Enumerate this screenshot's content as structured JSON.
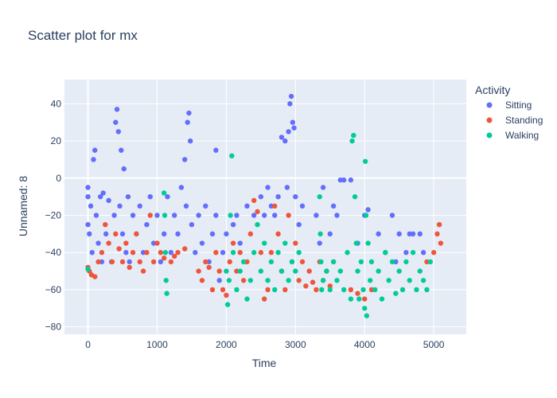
{
  "chart_data": {
    "type": "scatter",
    "title": "Scatter plot for mx",
    "xlabel": "Time",
    "ylabel": "Unnamed: 8",
    "xlim": [
      -340,
      5470
    ],
    "ylim": [
      -84,
      53
    ],
    "x_ticks": [
      0,
      1000,
      2000,
      3000,
      4000,
      5000
    ],
    "y_ticks": [
      -80,
      -60,
      -40,
      -20,
      0,
      20,
      40
    ],
    "grid": true,
    "legend": {
      "title": "Activity",
      "placement": "right"
    },
    "series": [
      {
        "name": "Sitting",
        "color": "#636efa",
        "points": [
          [
            0,
            -25
          ],
          [
            0,
            -10
          ],
          [
            0,
            -5
          ],
          [
            20,
            -30
          ],
          [
            40,
            -15
          ],
          [
            60,
            -40
          ],
          [
            80,
            10
          ],
          [
            100,
            15
          ],
          [
            120,
            -20
          ],
          [
            150,
            -35
          ],
          [
            180,
            -10
          ],
          [
            200,
            -45
          ],
          [
            220,
            -8
          ],
          [
            260,
            -30
          ],
          [
            300,
            -12
          ],
          [
            340,
            -45
          ],
          [
            380,
            -20
          ],
          [
            400,
            30
          ],
          [
            420,
            37
          ],
          [
            440,
            25
          ],
          [
            460,
            -15
          ],
          [
            480,
            15
          ],
          [
            500,
            -30
          ],
          [
            520,
            5
          ],
          [
            550,
            -40
          ],
          [
            580,
            -10
          ],
          [
            600,
            -45
          ],
          [
            650,
            -20
          ],
          [
            700,
            -30
          ],
          [
            750,
            -15
          ],
          [
            800,
            -40
          ],
          [
            850,
            -25
          ],
          [
            900,
            -10
          ],
          [
            950,
            -35
          ],
          [
            1000,
            -20
          ],
          [
            1050,
            -45
          ],
          [
            1100,
            -30
          ],
          [
            1150,
            -10
          ],
          [
            1200,
            -40
          ],
          [
            1250,
            -20
          ],
          [
            1300,
            -30
          ],
          [
            1350,
            -5
          ],
          [
            1400,
            10
          ],
          [
            1420,
            -15
          ],
          [
            1440,
            30
          ],
          [
            1460,
            35
          ],
          [
            1480,
            20
          ],
          [
            1500,
            -25
          ],
          [
            1550,
            -40
          ],
          [
            1600,
            -20
          ],
          [
            1650,
            -35
          ],
          [
            1700,
            -15
          ],
          [
            1750,
            -45
          ],
          [
            1800,
            -30
          ],
          [
            1850,
            -20
          ],
          [
            1900,
            -55
          ],
          [
            1850,
            15
          ],
          [
            1950,
            -40
          ],
          [
            2000,
            -30
          ],
          [
            2100,
            -25
          ],
          [
            2150,
            -20
          ],
          [
            2200,
            -35
          ],
          [
            2300,
            -15
          ],
          [
            2400,
            -20
          ],
          [
            2500,
            -10
          ],
          [
            2550,
            -20
          ],
          [
            2600,
            -5
          ],
          [
            2650,
            -15
          ],
          [
            2700,
            -20
          ],
          [
            2750,
            -10
          ],
          [
            2800,
            22
          ],
          [
            2850,
            20
          ],
          [
            2880,
            -5
          ],
          [
            2900,
            25
          ],
          [
            2920,
            40
          ],
          [
            2940,
            44
          ],
          [
            2960,
            30
          ],
          [
            2980,
            27
          ],
          [
            3000,
            -10
          ],
          [
            3050,
            -25
          ],
          [
            3100,
            -15
          ],
          [
            3300,
            -20
          ],
          [
            3350,
            -35
          ],
          [
            3400,
            -5
          ],
          [
            3500,
            -30
          ],
          [
            3550,
            -15
          ],
          [
            3600,
            -20
          ],
          [
            3650,
            -1
          ],
          [
            3700,
            -1
          ],
          [
            3800,
            -1
          ],
          [
            3900,
            -35
          ],
          [
            4000,
            -20
          ],
          [
            4050,
            -17
          ],
          [
            4200,
            -30
          ],
          [
            4300,
            -40
          ],
          [
            4400,
            -20
          ],
          [
            4450,
            -45
          ],
          [
            4500,
            -30
          ],
          [
            4600,
            -40
          ],
          [
            4650,
            -30
          ],
          [
            4700,
            -30
          ],
          [
            4800,
            -30
          ],
          [
            4850,
            -40
          ]
        ]
      },
      {
        "name": "Standing",
        "color": "#ef553b",
        "points": [
          [
            0,
            -48
          ],
          [
            20,
            -50
          ],
          [
            50,
            -52
          ],
          [
            100,
            -53
          ],
          [
            150,
            -45
          ],
          [
            200,
            -40
          ],
          [
            250,
            -25
          ],
          [
            300,
            -35
          ],
          [
            350,
            -45
          ],
          [
            400,
            -30
          ],
          [
            450,
            -38
          ],
          [
            500,
            -45
          ],
          [
            550,
            -35
          ],
          [
            600,
            -48
          ],
          [
            650,
            -40
          ],
          [
            700,
            -30
          ],
          [
            750,
            -45
          ],
          [
            800,
            -50
          ],
          [
            850,
            -40
          ],
          [
            900,
            -20
          ],
          [
            950,
            -45
          ],
          [
            1000,
            -35
          ],
          [
            1050,
            -40
          ],
          [
            1100,
            -43
          ],
          [
            1200,
            -45
          ],
          [
            1250,
            -42
          ],
          [
            1300,
            -40
          ],
          [
            1400,
            -38
          ],
          [
            1600,
            -50
          ],
          [
            1650,
            -55
          ],
          [
            1700,
            -45
          ],
          [
            1750,
            -48
          ],
          [
            1800,
            -60
          ],
          [
            1850,
            -40
          ],
          [
            1900,
            -50
          ],
          [
            1950,
            -60
          ],
          [
            2000,
            -63
          ],
          [
            2050,
            -45
          ],
          [
            2100,
            -35
          ],
          [
            2150,
            -50
          ],
          [
            2200,
            -40
          ],
          [
            2250,
            -55
          ],
          [
            2300,
            -45
          ],
          [
            2350,
            -30
          ],
          [
            2400,
            -12
          ],
          [
            2450,
            -18
          ],
          [
            2500,
            -40
          ],
          [
            2550,
            -65
          ],
          [
            2600,
            -60
          ],
          [
            2650,
            -40
          ],
          [
            2700,
            -15
          ],
          [
            2750,
            -30
          ],
          [
            2800,
            -50
          ],
          [
            2850,
            -60
          ],
          [
            2900,
            -20
          ],
          [
            2950,
            -45
          ],
          [
            3000,
            -35
          ],
          [
            3050,
            -55
          ],
          [
            3100,
            -45
          ],
          [
            3150,
            -58
          ],
          [
            3200,
            -50
          ],
          [
            3250,
            -56
          ],
          [
            3300,
            -60
          ],
          [
            3350,
            -45
          ],
          [
            3400,
            -55
          ],
          [
            3450,
            -50
          ],
          [
            3500,
            -58
          ],
          [
            3550,
            -45
          ],
          [
            3800,
            -60
          ],
          [
            3900,
            -62
          ],
          [
            4000,
            -65
          ],
          [
            4100,
            -60
          ],
          [
            4900,
            -45
          ],
          [
            5000,
            -40
          ],
          [
            5050,
            -30
          ],
          [
            5080,
            -25
          ],
          [
            5100,
            -35
          ]
        ]
      },
      {
        "name": "Walking",
        "color": "#00cc96",
        "points": [
          [
            0,
            -49
          ],
          [
            1100,
            -8
          ],
          [
            1110,
            -20
          ],
          [
            1120,
            -40
          ],
          [
            1130,
            -55
          ],
          [
            1140,
            -62
          ],
          [
            2000,
            -50
          ],
          [
            2020,
            -68
          ],
          [
            2040,
            -55
          ],
          [
            2060,
            -20
          ],
          [
            2080,
            12
          ],
          [
            2100,
            -40
          ],
          [
            2150,
            -60
          ],
          [
            2200,
            -50
          ],
          [
            2250,
            -45
          ],
          [
            2300,
            -65
          ],
          [
            2350,
            -55
          ],
          [
            2400,
            -40
          ],
          [
            2450,
            -25
          ],
          [
            2500,
            -50
          ],
          [
            2550,
            -35
          ],
          [
            2600,
            -55
          ],
          [
            2650,
            -45
          ],
          [
            2700,
            -60
          ],
          [
            2750,
            -40
          ],
          [
            2800,
            -50
          ],
          [
            2850,
            -35
          ],
          [
            2900,
            -55
          ],
          [
            2950,
            -45
          ],
          [
            3000,
            -50
          ],
          [
            3050,
            -40
          ],
          [
            3350,
            -10
          ],
          [
            3360,
            -30
          ],
          [
            3370,
            -45
          ],
          [
            3380,
            -60
          ],
          [
            3400,
            -55
          ],
          [
            3450,
            -50
          ],
          [
            3500,
            -60
          ],
          [
            3550,
            -45
          ],
          [
            3600,
            -55
          ],
          [
            3650,
            -50
          ],
          [
            3700,
            -60
          ],
          [
            3750,
            -40
          ],
          [
            3800,
            -65
          ],
          [
            3820,
            20
          ],
          [
            3840,
            23
          ],
          [
            3860,
            -10
          ],
          [
            3880,
            -35
          ],
          [
            3900,
            -50
          ],
          [
            3920,
            -65
          ],
          [
            3950,
            -45
          ],
          [
            3980,
            -60
          ],
          [
            4000,
            -70
          ],
          [
            4010,
            9
          ],
          [
            4020,
            -20
          ],
          [
            4030,
            -74
          ],
          [
            4050,
            -35
          ],
          [
            4080,
            -55
          ],
          [
            4100,
            -45
          ],
          [
            4150,
            -60
          ],
          [
            4200,
            -50
          ],
          [
            4250,
            -65
          ],
          [
            4300,
            -40
          ],
          [
            4350,
            -55
          ],
          [
            4400,
            -45
          ],
          [
            4450,
            -62
          ],
          [
            4500,
            -50
          ],
          [
            4550,
            -60
          ],
          [
            4600,
            -45
          ],
          [
            4650,
            -55
          ],
          [
            4700,
            -40
          ],
          [
            4750,
            -60
          ],
          [
            4800,
            -50
          ],
          [
            4850,
            -55
          ],
          [
            4900,
            -60
          ],
          [
            4950,
            -45
          ]
        ]
      }
    ]
  }
}
